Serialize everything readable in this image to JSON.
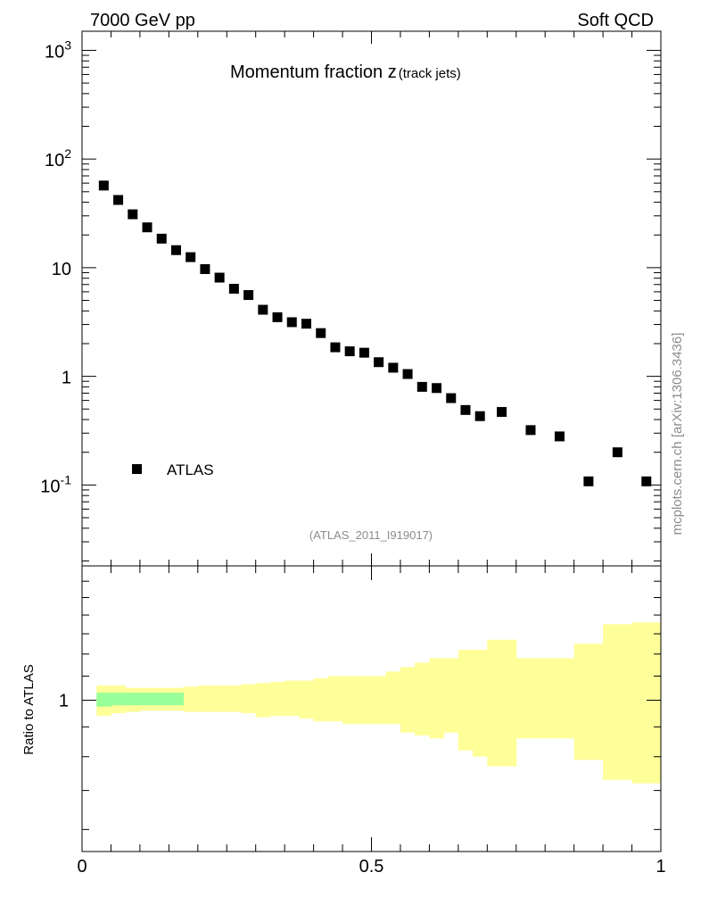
{
  "header": {
    "left": "7000 GeV pp",
    "right": "Soft QCD"
  },
  "side_label": "mcplots.cern.ch [arXiv:1306.3436]",
  "chart_data": [
    {
      "type": "scatter",
      "title": "Momentum fraction z",
      "title_sub": "(track jets)",
      "analysis_id": "(ATLAS_2011_I919017)",
      "y_scale": "log",
      "ylim": [
        0.018,
        1500
      ],
      "xlim": [
        0,
        1
      ],
      "y_tick_labels": [
        "10^{-1}",
        "1",
        "10",
        "10^{2}",
        "10^{3}"
      ],
      "legend": {
        "position": "bottom-left",
        "entries": [
          "ATLAS"
        ]
      },
      "series": [
        {
          "name": "ATLAS",
          "marker": "square",
          "color": "#000000",
          "x": [
            0.0375,
            0.0625,
            0.0875,
            0.1125,
            0.1375,
            0.1625,
            0.1875,
            0.2125,
            0.2375,
            0.2625,
            0.2875,
            0.3125,
            0.3375,
            0.3625,
            0.3875,
            0.4125,
            0.4375,
            0.4625,
            0.4875,
            0.5125,
            0.5375,
            0.5625,
            0.5875,
            0.6125,
            0.6375,
            0.6625,
            0.6875,
            0.725,
            0.775,
            0.825,
            0.875,
            0.925,
            0.975
          ],
          "y": [
            57,
            42,
            31,
            23.5,
            18.5,
            14.5,
            12.5,
            9.7,
            8.1,
            6.4,
            5.6,
            4.1,
            3.5,
            3.15,
            3.05,
            2.5,
            1.85,
            1.7,
            1.65,
            1.35,
            1.2,
            1.05,
            0.8,
            0.78,
            0.63,
            0.49,
            0.43,
            0.47,
            0.32,
            0.28,
            0.108,
            0.2,
            0.108
          ]
        }
      ]
    },
    {
      "type": "area",
      "ylabel": "Ratio to ATLAS",
      "y_scale": "log",
      "ylim": [
        0.55,
        1.7
      ],
      "xlim": [
        0,
        1
      ],
      "x_tick_labels": [
        "0",
        "0.5",
        "1"
      ],
      "y_tick_labels": [
        "1"
      ],
      "band_colors": {
        "total": "#ffff99",
        "stat": "#99ff99"
      },
      "bins": [
        {
          "x0": 0.025,
          "x1": 0.05,
          "lo": 0.94,
          "hi": 1.06,
          "slo": 0.975,
          "shi": 1.03
        },
        {
          "x0": 0.05,
          "x1": 0.075,
          "lo": 0.95,
          "hi": 1.06,
          "slo": 0.98,
          "shi": 1.03
        },
        {
          "x0": 0.075,
          "x1": 0.1,
          "lo": 0.955,
          "hi": 1.05,
          "slo": 0.98,
          "shi": 1.03
        },
        {
          "x0": 0.1,
          "x1": 0.125,
          "lo": 0.96,
          "hi": 1.05,
          "slo": 0.98,
          "shi": 1.03
        },
        {
          "x0": 0.125,
          "x1": 0.15,
          "lo": 0.96,
          "hi": 1.05,
          "slo": 0.98,
          "shi": 1.03
        },
        {
          "x0": 0.15,
          "x1": 0.175,
          "lo": 0.96,
          "hi": 1.05,
          "slo": 0.98,
          "shi": 1.03
        },
        {
          "x0": 0.175,
          "x1": 0.2,
          "lo": 0.955,
          "hi": 1.055,
          "slo": 0.985,
          "shi": 1.015
        },
        {
          "x0": 0.2,
          "x1": 0.225,
          "lo": 0.955,
          "hi": 1.06,
          "slo": 0.99,
          "shi": 1.01
        },
        {
          "x0": 0.225,
          "x1": 0.25,
          "lo": 0.955,
          "hi": 1.06,
          "slo": 0.99,
          "shi": 1.01
        },
        {
          "x0": 0.25,
          "x1": 0.275,
          "lo": 0.955,
          "hi": 1.06,
          "slo": 0.99,
          "shi": 1.01
        },
        {
          "x0": 0.275,
          "x1": 0.3,
          "lo": 0.95,
          "hi": 1.065,
          "slo": 0.99,
          "shi": 1.01
        },
        {
          "x0": 0.3,
          "x1": 0.325,
          "lo": 0.935,
          "hi": 1.07,
          "slo": 0.99,
          "shi": 1.01
        },
        {
          "x0": 0.325,
          "x1": 0.35,
          "lo": 0.94,
          "hi": 1.075,
          "slo": 0.99,
          "shi": 1.01
        },
        {
          "x0": 0.35,
          "x1": 0.375,
          "lo": 0.94,
          "hi": 1.08,
          "slo": 0.99,
          "shi": 1.01
        },
        {
          "x0": 0.375,
          "x1": 0.4,
          "lo": 0.93,
          "hi": 1.08,
          "slo": 0.99,
          "shi": 1.01
        },
        {
          "x0": 0.4,
          "x1": 0.425,
          "lo": 0.92,
          "hi": 1.09,
          "slo": 0.99,
          "shi": 1.01
        },
        {
          "x0": 0.425,
          "x1": 0.45,
          "lo": 0.92,
          "hi": 1.1,
          "slo": 0.99,
          "shi": 1.01
        },
        {
          "x0": 0.45,
          "x1": 0.475,
          "lo": 0.91,
          "hi": 1.1,
          "slo": 0.99,
          "shi": 1.01
        },
        {
          "x0": 0.475,
          "x1": 0.5,
          "lo": 0.91,
          "hi": 1.1,
          "slo": 0.99,
          "shi": 1.01
        },
        {
          "x0": 0.5,
          "x1": 0.525,
          "lo": 0.91,
          "hi": 1.1,
          "slo": 0.99,
          "shi": 1.01
        },
        {
          "x0": 0.525,
          "x1": 0.55,
          "lo": 0.91,
          "hi": 1.12,
          "slo": 0.99,
          "shi": 1.01
        },
        {
          "x0": 0.55,
          "x1": 0.575,
          "lo": 0.88,
          "hi": 1.14,
          "slo": 0.99,
          "shi": 1.01
        },
        {
          "x0": 0.575,
          "x1": 0.6,
          "lo": 0.87,
          "hi": 1.16,
          "slo": 0.99,
          "shi": 1.01
        },
        {
          "x0": 0.6,
          "x1": 0.625,
          "lo": 0.86,
          "hi": 1.18,
          "slo": 0.99,
          "shi": 1.01
        },
        {
          "x0": 0.625,
          "x1": 0.65,
          "lo": 0.88,
          "hi": 1.18,
          "slo": 0.99,
          "shi": 1.01
        },
        {
          "x0": 0.65,
          "x1": 0.675,
          "lo": 0.82,
          "hi": 1.22,
          "slo": 0.99,
          "shi": 1.01
        },
        {
          "x0": 0.675,
          "x1": 0.7,
          "lo": 0.8,
          "hi": 1.22,
          "slo": 0.99,
          "shi": 1.01
        },
        {
          "x0": 0.7,
          "x1": 0.75,
          "lo": 0.77,
          "hi": 1.27,
          "slo": 0.99,
          "shi": 1.01
        },
        {
          "x0": 0.75,
          "x1": 0.8,
          "lo": 0.86,
          "hi": 1.18,
          "slo": 0.99,
          "shi": 1.01
        },
        {
          "x0": 0.8,
          "x1": 0.85,
          "lo": 0.86,
          "hi": 1.18,
          "slo": 0.99,
          "shi": 1.01
        },
        {
          "x0": 0.85,
          "x1": 0.9,
          "lo": 0.79,
          "hi": 1.25,
          "slo": 0.99,
          "shi": 1.01
        },
        {
          "x0": 0.9,
          "x1": 0.95,
          "lo": 0.73,
          "hi": 1.35,
          "slo": 0.99,
          "shi": 1.01
        },
        {
          "x0": 0.95,
          "x1": 1.0,
          "lo": 0.72,
          "hi": 1.36,
          "slo": 0.99,
          "shi": 1.01
        }
      ]
    }
  ]
}
